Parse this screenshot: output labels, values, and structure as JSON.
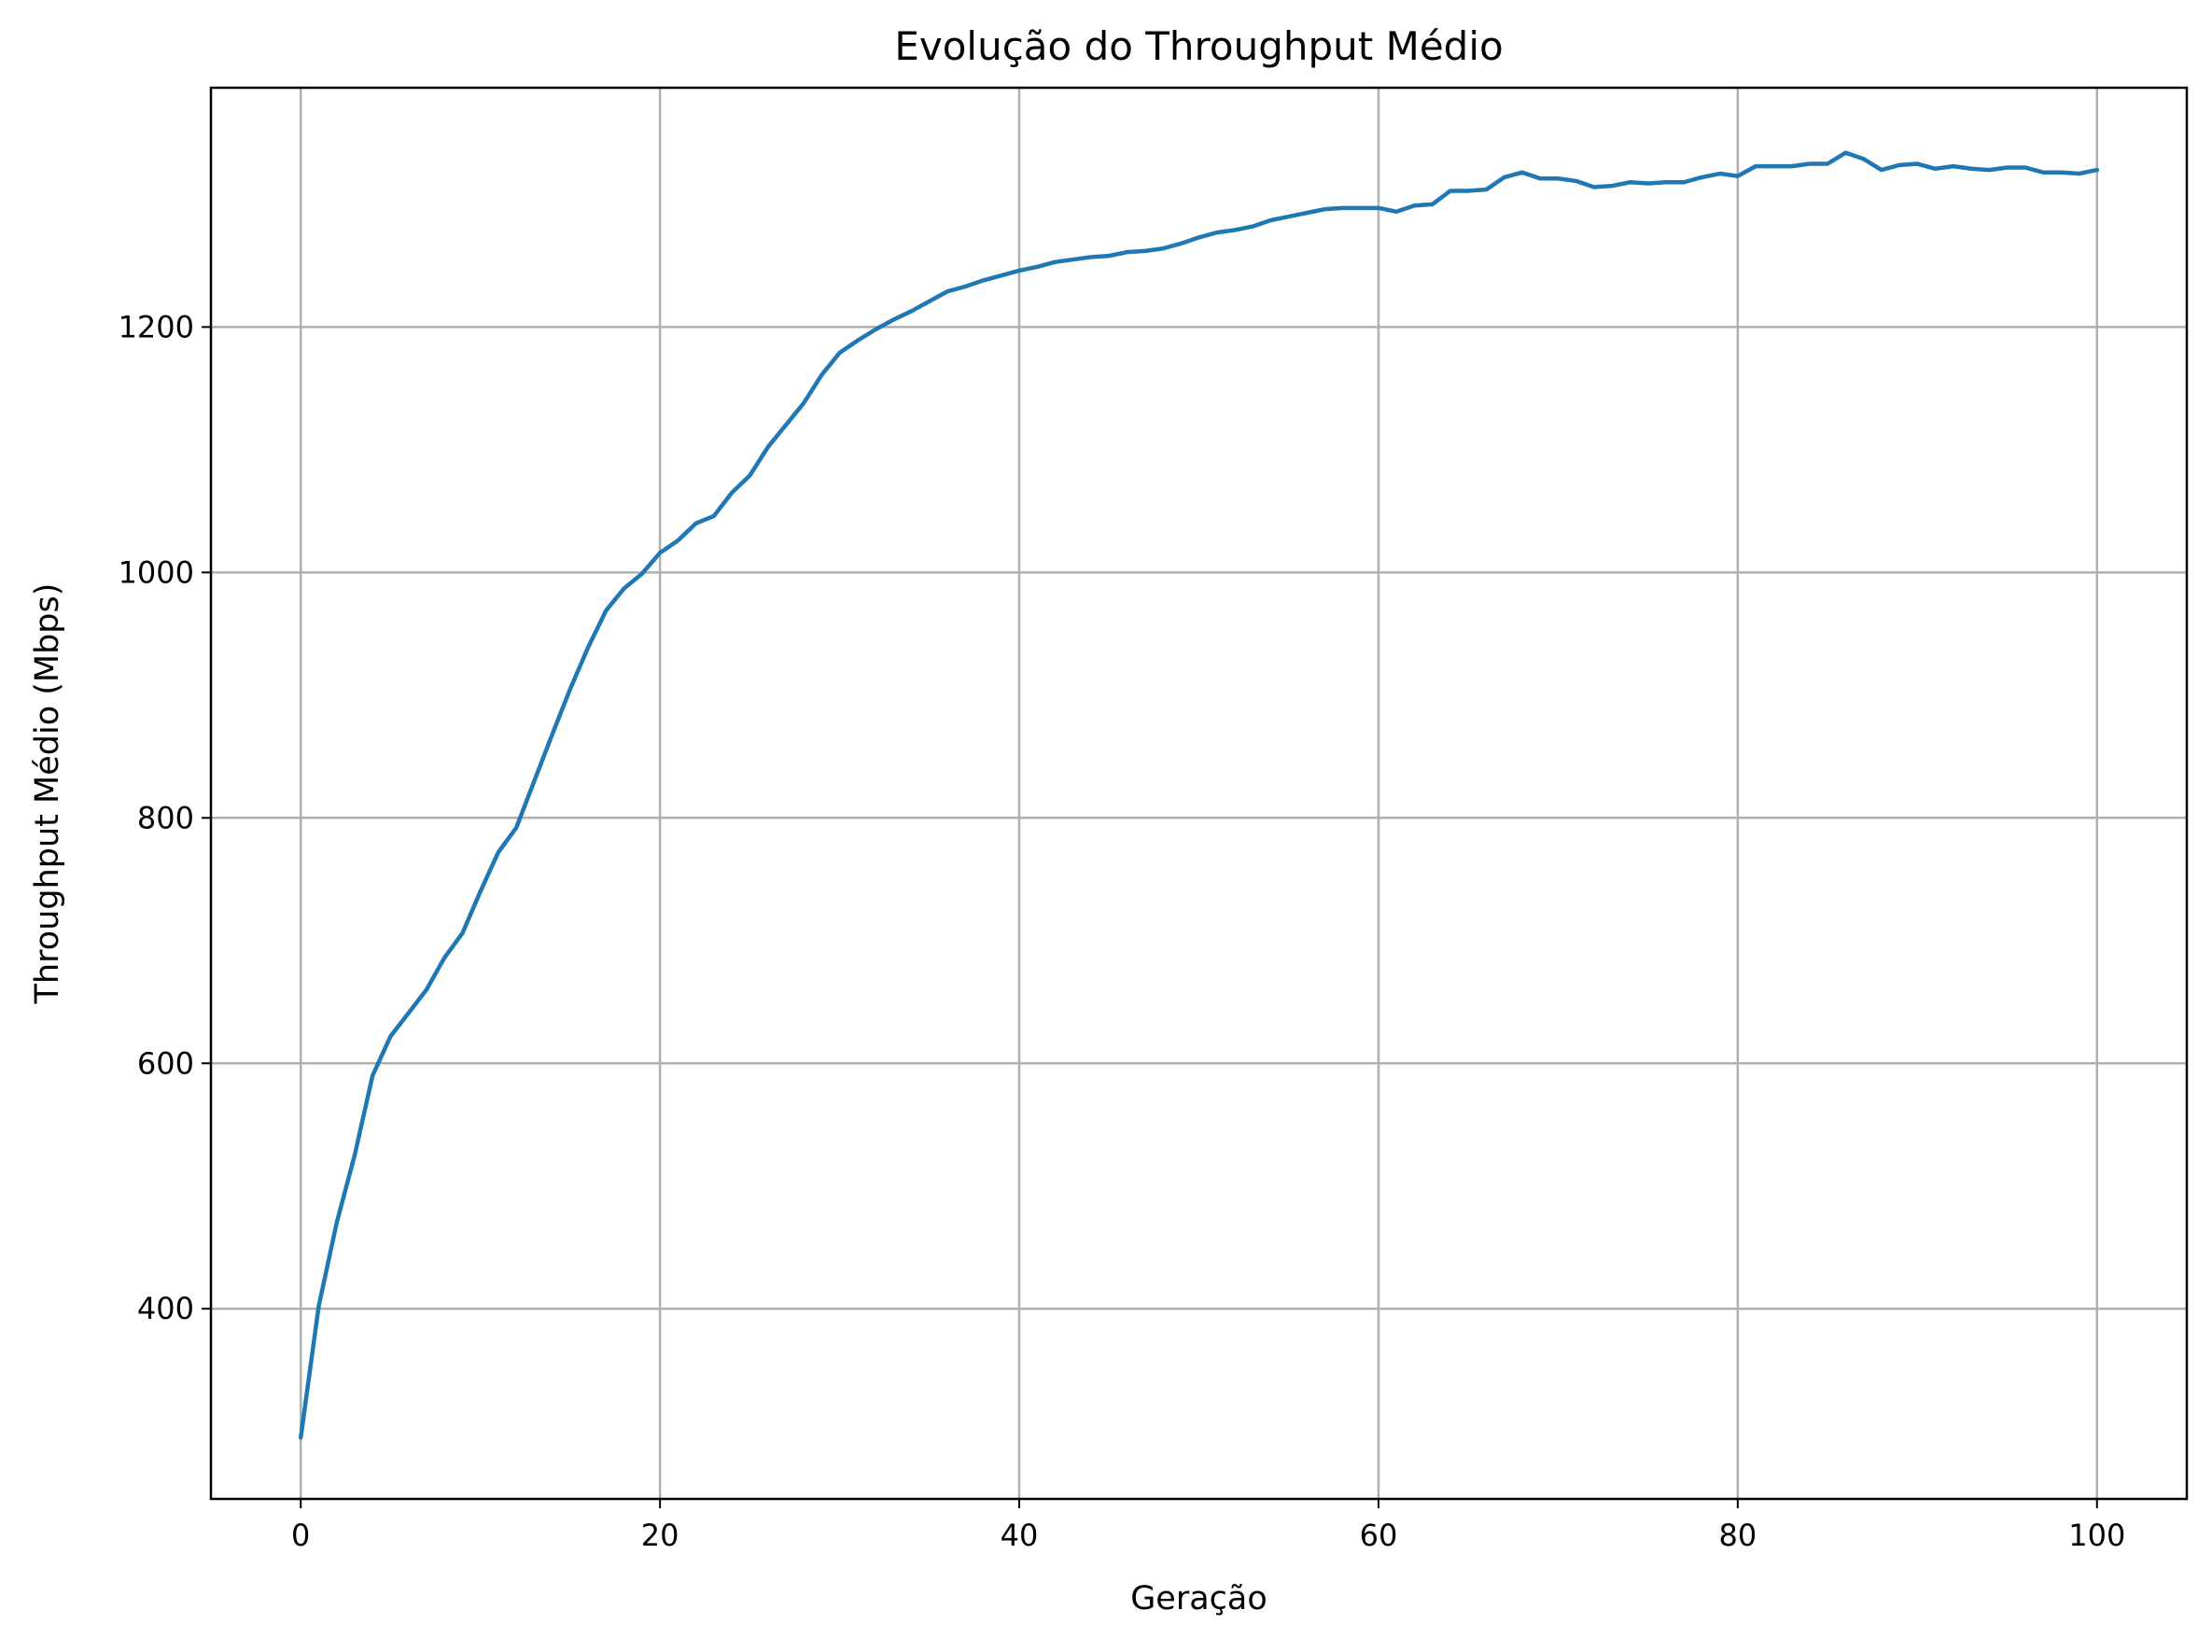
{
  "chart_data": {
    "type": "line",
    "title": "Evolução do Throughput Médio",
    "xlabel": "Geração",
    "ylabel": "Throughput Médio (Mbps)",
    "xlim": [
      -5,
      105
    ],
    "ylim": [
      245,
      1395
    ],
    "xticks": [
      0,
      20,
      40,
      60,
      80,
      100
    ],
    "yticks": [
      400,
      600,
      800,
      1000,
      1200
    ],
    "grid": true,
    "legend": "none",
    "series": [
      {
        "color": "#1f77b4",
        "x": [
          0,
          1,
          2,
          3,
          4,
          5,
          6,
          7,
          8,
          9,
          10,
          11,
          12,
          13,
          14,
          15,
          16,
          17,
          18,
          19,
          20,
          21,
          22,
          23,
          24,
          25,
          26,
          27,
          28,
          29,
          30,
          31,
          32,
          33,
          34,
          35,
          36,
          37,
          38,
          39,
          40,
          41,
          42,
          43,
          44,
          45,
          46,
          47,
          48,
          49,
          50,
          51,
          52,
          53,
          54,
          55,
          56,
          57,
          58,
          59,
          60,
          61,
          62,
          63,
          64,
          65,
          66,
          67,
          68,
          69,
          70,
          71,
          72,
          73,
          74,
          75,
          76,
          77,
          78,
          79,
          80,
          81,
          82,
          83,
          84,
          85,
          86,
          87,
          88,
          89,
          90,
          91,
          92,
          93,
          94,
          95,
          96,
          97,
          98,
          99,
          100
        ],
        "y": [
          295,
          402,
          470,
          525,
          590,
          622,
          641,
          660,
          686,
          706,
          740,
          772,
          792,
          830,
          868,
          905,
          939,
          969,
          987,
          999,
          1016,
          1026,
          1040,
          1046,
          1065,
          1079,
          1102,
          1120,
          1138,
          1161,
          1179,
          1189,
          1198,
          1206,
          1213,
          1221,
          1229,
          1233,
          1238,
          1242,
          1246,
          1249,
          1253,
          1255,
          1257,
          1258,
          1261,
          1262,
          1264,
          1268,
          1273,
          1277,
          1279,
          1282,
          1287,
          1290,
          1293,
          1296,
          1297,
          1297,
          1297,
          1294,
          1299,
          1300,
          1311,
          1311,
          1312,
          1322,
          1326,
          1321,
          1321,
          1319,
          1314,
          1315,
          1318,
          1317,
          1318,
          1318,
          1322,
          1325,
          1323,
          1331,
          1331,
          1331,
          1333,
          1333,
          1342,
          1337,
          1328,
          1332,
          1333,
          1329,
          1331,
          1329,
          1328,
          1330,
          1330,
          1326,
          1326,
          1325,
          1328
        ]
      }
    ]
  }
}
